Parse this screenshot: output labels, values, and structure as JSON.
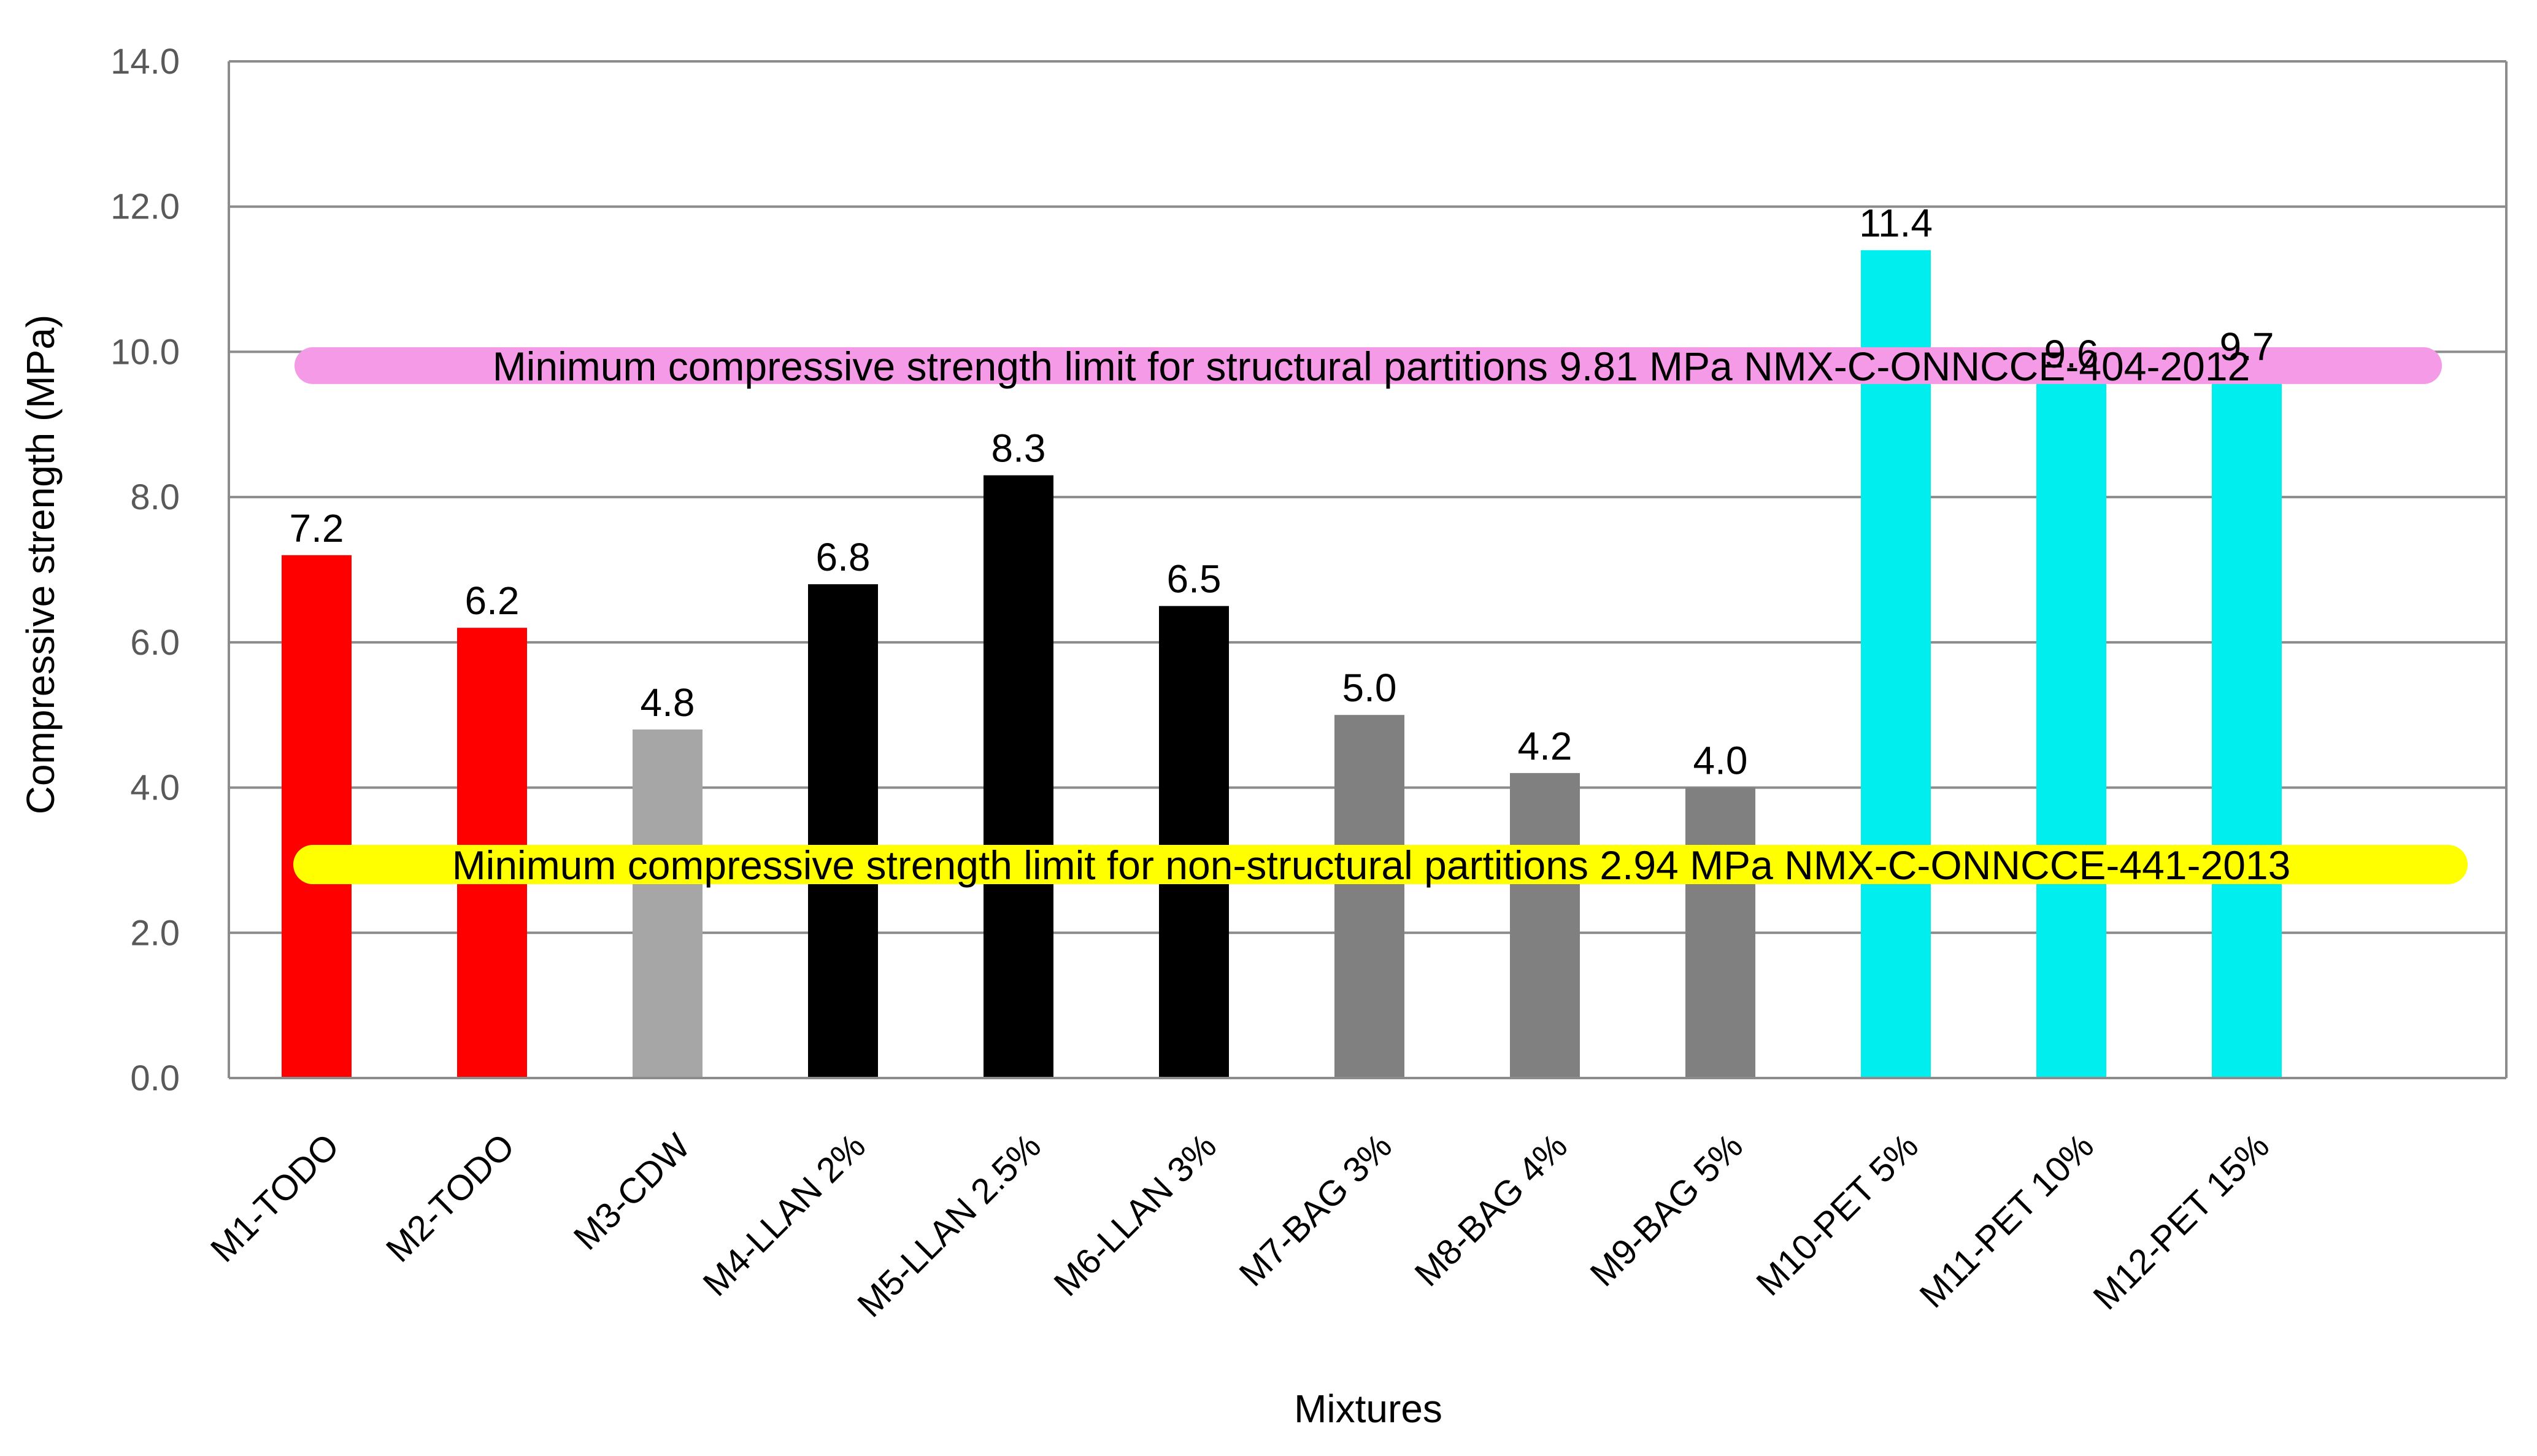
{
  "chart_data": {
    "type": "bar",
    "title": "",
    "xlabel": "Mixtures",
    "ylabel": "Compressive strength (MPa)",
    "ylim": [
      0,
      14
    ],
    "ytick_step": 2,
    "ytick_labels": [
      "0.0",
      "2.0",
      "4.0",
      "6.0",
      "8.0",
      "10.0",
      "12.0",
      "14.0"
    ],
    "grid": true,
    "categories": [
      "M1-TODO",
      "M2-TODO",
      "M3-CDW",
      "M4-LLAN 2%",
      "M5-LLAN 2.5%",
      "M6-LLAN 3%",
      "M7-BAG 3%",
      "M8-BAG 4%",
      "M9-BAG 5%",
      "M10-PET 5%",
      "M11-PET 10%",
      "M12-PET 15%"
    ],
    "values": [
      7.2,
      6.2,
      4.8,
      6.8,
      8.3,
      6.5,
      5.0,
      4.2,
      4.0,
      11.4,
      9.6,
      9.7
    ],
    "value_labels": [
      "7.2",
      "6.2",
      "4.8",
      "6.8",
      "8.3",
      "6.5",
      "5.0",
      "4.2",
      "4.0",
      "11.4",
      "9.6",
      "9.7"
    ],
    "bar_colors": [
      "#ff0000",
      "#ff0000",
      "#a6a6a6",
      "#000000",
      "#000000",
      "#000000",
      "#808080",
      "#808080",
      "#808080",
      "#00eeee",
      "#00eeee",
      "#00eeee"
    ],
    "reference_lines": [
      {
        "name": "structural",
        "value": 9.81,
        "color": "#f49ae6",
        "label": "Minimum compressive strength limit for structural partitions 9.81 MPa NMX-C-ONNCCE-404-2012"
      },
      {
        "name": "non-structural",
        "value": 2.94,
        "color": "#ffff00",
        "label": "Minimum compressive strength limit for non-structural partitions 2.94 MPa NMX-C-ONNCCE-441-2013"
      }
    ]
  }
}
